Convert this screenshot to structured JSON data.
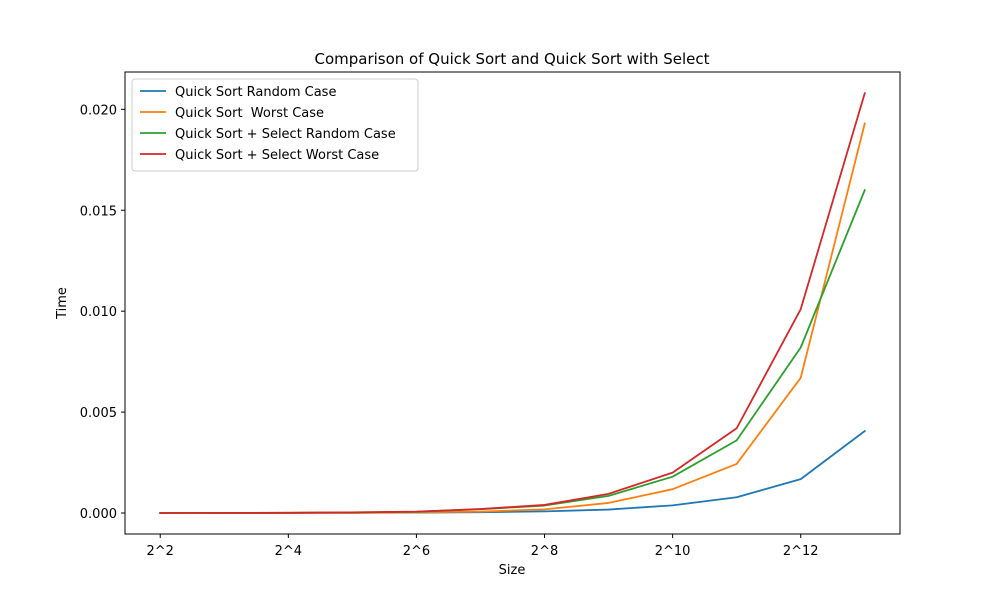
{
  "chart_data": {
    "type": "line",
    "title": "Comparison of Quick Sort and Quick Sort with Select",
    "xlabel": "Size",
    "ylabel": "Time",
    "x": [
      2,
      3,
      4,
      5,
      6,
      7,
      8,
      9,
      10,
      11,
      12,
      13
    ],
    "x_tick_values": [
      2,
      4,
      6,
      8,
      10,
      12
    ],
    "x_tick_labels": [
      "2^2",
      "2^4",
      "2^6",
      "2^8",
      "2^10",
      "2^12"
    ],
    "xlim": [
      1.45,
      13.55
    ],
    "ylim": [
      -0.00104,
      0.02185
    ],
    "y_tick_values": [
      0.0,
      0.005,
      0.01,
      0.015,
      0.02
    ],
    "y_tick_labels": [
      "0.000",
      "0.005",
      "0.010",
      "0.015",
      "0.020"
    ],
    "grid": false,
    "legend_position": "top-left",
    "series": [
      {
        "name": "Quick Sort Random Case",
        "color": "#1f77b4",
        "values": [
          0.0,
          2e-06,
          5e-06,
          1e-05,
          2e-05,
          4e-05,
          8e-05,
          0.00017,
          0.00038,
          0.00078,
          0.00168,
          0.00406
        ]
      },
      {
        "name": "Quick Sort  Worst Case",
        "color": "#ff7f0e",
        "values": [
          0.0,
          2e-06,
          5e-06,
          1e-05,
          3e-05,
          7e-05,
          0.00018,
          0.0005,
          0.00118,
          0.00243,
          0.0067,
          0.0193
        ]
      },
      {
        "name": "Quick Sort + Select Random Case",
        "color": "#2ca02c",
        "values": [
          0.0,
          5e-06,
          1e-05,
          3e-05,
          6e-05,
          0.00019,
          0.00037,
          0.00085,
          0.0018,
          0.0036,
          0.0082,
          0.016
        ]
      },
      {
        "name": "Quick Sort + Select Worst Case",
        "color": "#d62728",
        "values": [
          0.0,
          5e-06,
          1e-05,
          3e-05,
          7e-05,
          0.0002,
          0.0004,
          0.00095,
          0.002,
          0.0042,
          0.0101,
          0.0208
        ]
      }
    ]
  }
}
